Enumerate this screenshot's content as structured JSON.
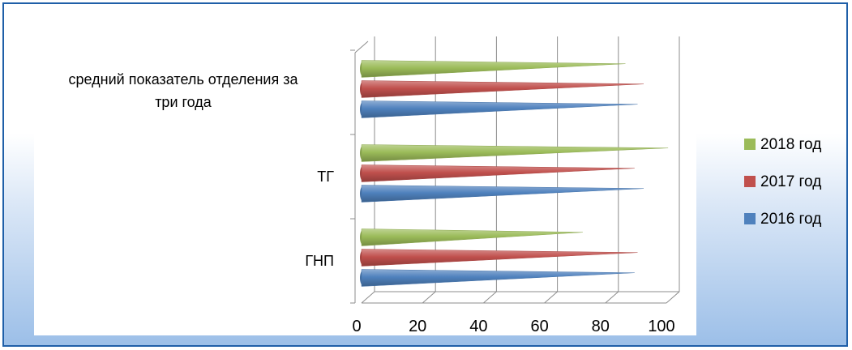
{
  "chart_data": {
    "type": "bar",
    "orientation": "horizontal",
    "style": "3d-cone",
    "categories": [
      "ГНП",
      "ТГ",
      "средний показатель отделения за три года"
    ],
    "series": [
      {
        "name": "2016 год",
        "color": "#4f81bd",
        "values": [
          87,
          90,
          88
        ]
      },
      {
        "name": "2017 год",
        "color": "#c0504d",
        "values": [
          88,
          87,
          90
        ]
      },
      {
        "name": "2018 год",
        "color": "#9bbb59",
        "values": [
          70,
          98,
          84
        ]
      }
    ],
    "xlim": [
      0,
      100
    ],
    "xticks": [
      0,
      20,
      40,
      60,
      80,
      100
    ],
    "grid": true,
    "legend_position": "right",
    "title": "",
    "xlabel": "",
    "ylabel": ""
  }
}
